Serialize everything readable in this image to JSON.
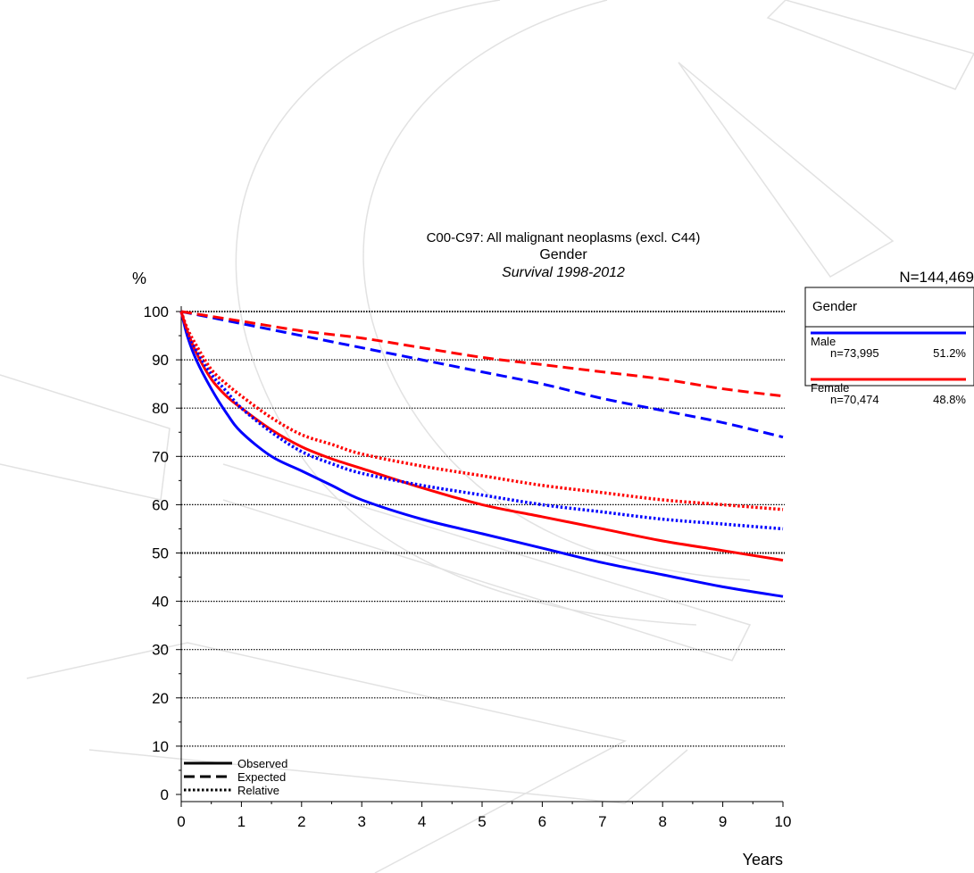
{
  "chart_data": {
    "type": "line",
    "title": "C00-C97: All malignant neoplasms (excl. C44)",
    "subtitle": "Gender",
    "subtitle2": "Survival 1998-2012",
    "ylabel": "%",
    "xlabel": "Years",
    "total_n": "N=144,469",
    "xlim": [
      0,
      10
    ],
    "ylim": [
      0,
      100
    ],
    "x_ticks": [
      "0",
      "1",
      "2",
      "3",
      "4",
      "5",
      "6",
      "7",
      "8",
      "9",
      "10"
    ],
    "y_ticks": [
      "0",
      "10",
      "20",
      "30",
      "40",
      "50",
      "60",
      "70",
      "80",
      "90",
      "100"
    ],
    "grid": "horizontal dotted",
    "legend": {
      "title": "Gender",
      "position": "right",
      "entries": [
        {
          "name": "Male",
          "n": "n=73,995",
          "pct": "51.2%",
          "color": "#0000ff"
        },
        {
          "name": "Female",
          "n": "n=70,474",
          "pct": "48.8%",
          "color": "#ff0000"
        }
      ]
    },
    "line_key": {
      "position": "bottom-left",
      "entries": [
        {
          "label": "Observed",
          "style": "solid"
        },
        {
          "label": "Expected",
          "style": "dashed"
        },
        {
          "label": "Relative",
          "style": "dotted"
        }
      ]
    },
    "series": [
      {
        "group": "Male",
        "style": "solid",
        "color": "#0000ff",
        "x": [
          0,
          0.1,
          0.25,
          0.5,
          0.75,
          1,
          1.5,
          2,
          2.5,
          3,
          4,
          5,
          6,
          7,
          8,
          9,
          10
        ],
        "y": [
          100,
          95,
          90,
          84,
          79,
          75,
          70,
          67,
          64,
          61,
          57,
          54,
          51,
          48,
          45.5,
          43,
          41
        ]
      },
      {
        "group": "Female",
        "style": "solid",
        "color": "#ff0000",
        "x": [
          0,
          0.1,
          0.25,
          0.5,
          0.75,
          1,
          1.5,
          2,
          2.5,
          3,
          4,
          5,
          6,
          7,
          8,
          9,
          10
        ],
        "y": [
          100,
          96,
          91.5,
          86,
          82.5,
          80,
          75.5,
          72,
          69.5,
          67.5,
          63.5,
          60,
          57.5,
          55,
          52.5,
          50.5,
          48.5
        ]
      },
      {
        "group": "Male",
        "style": "dashed",
        "color": "#0000ff",
        "x": [
          0,
          1,
          2,
          3,
          4,
          5,
          6,
          7,
          8,
          9,
          10
        ],
        "y": [
          100,
          97.5,
          95,
          92.5,
          90,
          87.5,
          85,
          82,
          79.5,
          77,
          74
        ]
      },
      {
        "group": "Female",
        "style": "dashed",
        "color": "#ff0000",
        "x": [
          0,
          1,
          2,
          3,
          4,
          5,
          6,
          7,
          8,
          9,
          10
        ],
        "y": [
          100,
          98,
          96,
          94.5,
          92.5,
          90.5,
          89,
          87.5,
          86,
          84,
          82.5
        ]
      },
      {
        "group": "Male",
        "style": "dotted",
        "color": "#0000ff",
        "x": [
          0,
          0.1,
          0.25,
          0.5,
          0.75,
          1,
          1.5,
          2,
          2.5,
          3,
          4,
          5,
          6,
          7,
          8,
          9,
          10
        ],
        "y": [
          100,
          96,
          92,
          87,
          83.5,
          80,
          75,
          71,
          68.5,
          66.5,
          64,
          62,
          60,
          58.5,
          57,
          56,
          55
        ]
      },
      {
        "group": "Female",
        "style": "dotted",
        "color": "#ff0000",
        "x": [
          0,
          0.1,
          0.25,
          0.5,
          0.75,
          1,
          1.5,
          2,
          2.5,
          3,
          4,
          5,
          6,
          7,
          8,
          9,
          10
        ],
        "y": [
          100,
          96.5,
          93,
          88,
          85,
          82.5,
          78,
          74.5,
          72.5,
          70.5,
          68,
          66,
          64,
          62.5,
          61,
          60,
          59
        ]
      }
    ]
  }
}
